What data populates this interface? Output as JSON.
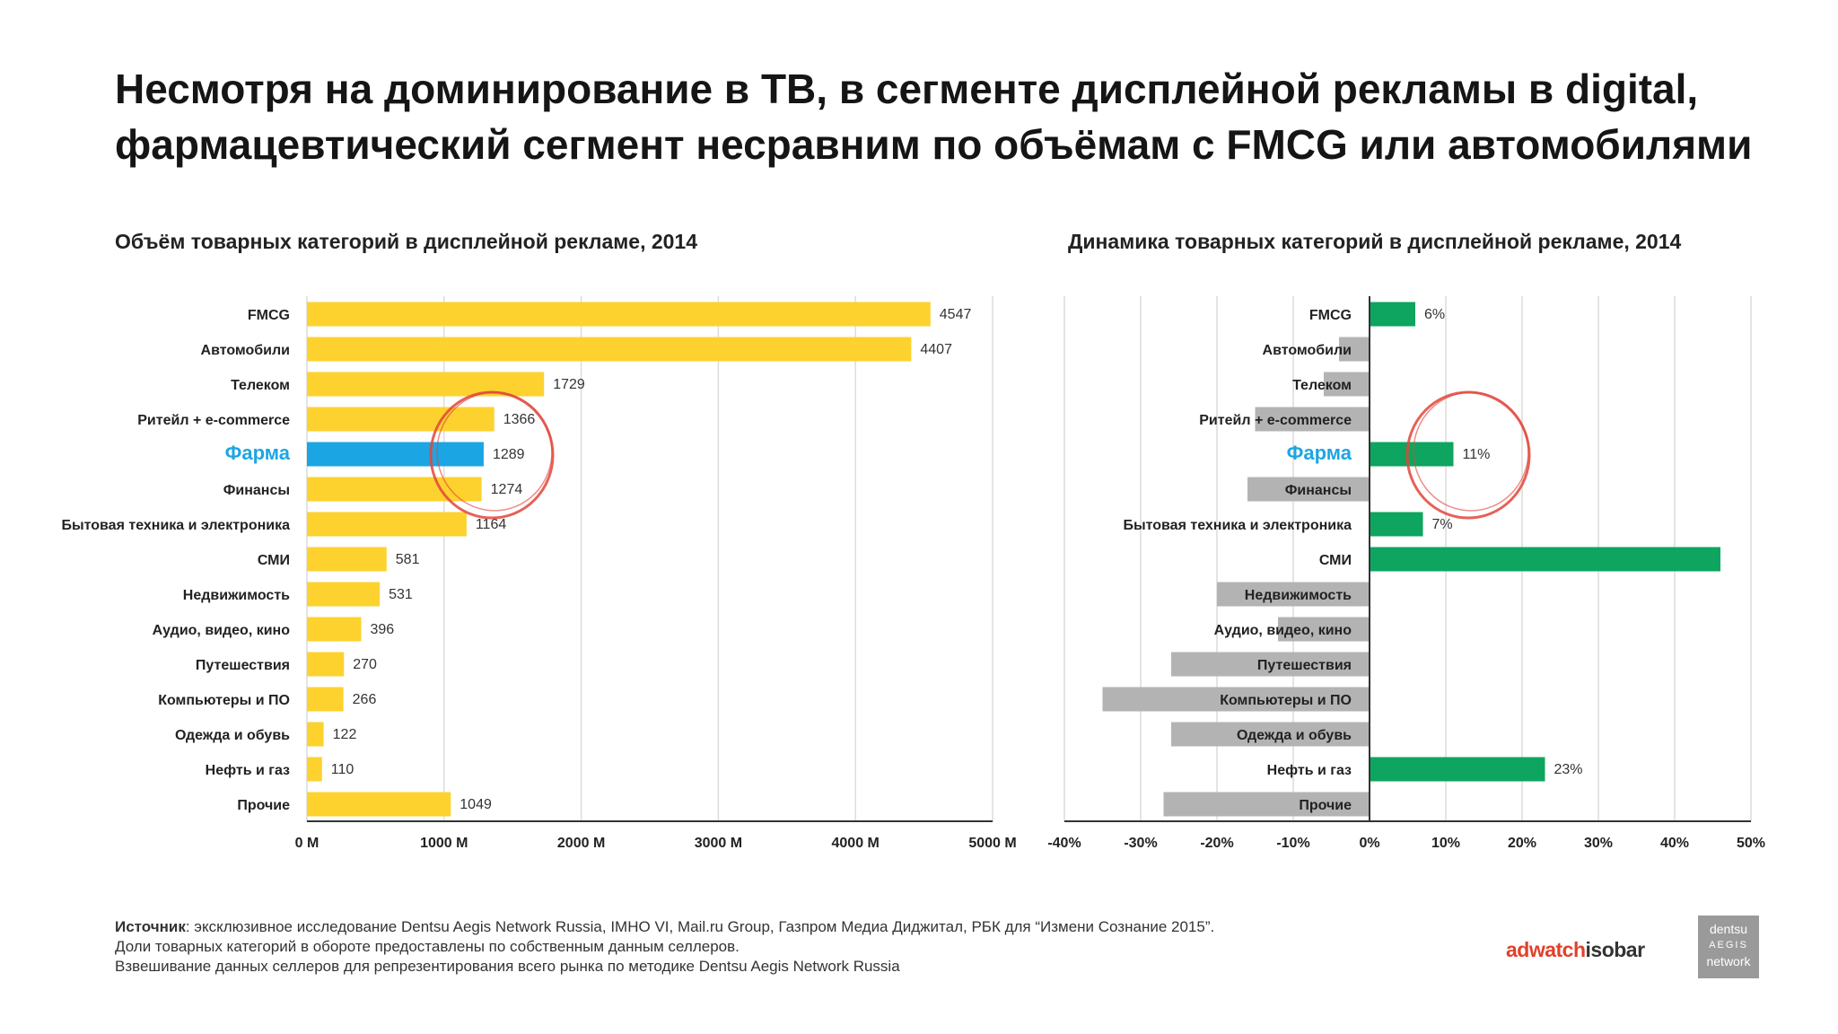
{
  "headline": "Несмотря на доминирование в ТВ, в сегменте дисплейной рекламы в digital, фармацевтический сегмент несравним по объёмам с FMCG или автомобилями",
  "colors": {
    "volume_bar": "#FDD22E",
    "highlight_bar": "#1BA6E3",
    "growth_bar": "#0DA55F",
    "decline_bar": "#B4B3B3",
    "highlight_text": "#1BA6E3",
    "circle": "#E2453A"
  },
  "chart_data": [
    {
      "type": "bar",
      "orientation": "horizontal",
      "title": "Объём товарных категорий в дисплейной рекламе, 2014",
      "categories": [
        "FMCG",
        "Автомобили",
        "Телеком",
        "Ритейл + e-commerce",
        "Фарма",
        "Финансы",
        "Бытовая техника и электроника",
        "СМИ",
        "Недвижимость",
        "Аудио, видео, кино",
        "Путешествия",
        "Компьютеры и ПО",
        "Одежда и обувь",
        "Нефть и газ",
        "Прочие"
      ],
      "values": [
        4547,
        4407,
        1729,
        1366,
        1289,
        1274,
        1164,
        581,
        531,
        396,
        270,
        266,
        122,
        110,
        1049
      ],
      "data_labels": [
        "4547",
        "4407",
        "1729",
        "1366",
        "1289",
        "1274",
        "1164",
        "581",
        "531",
        "396",
        "270",
        "266",
        "122",
        "110",
        "1049"
      ],
      "highlight": "Фарма",
      "xlim": [
        0,
        5000
      ],
      "xticks": [
        0,
        1000,
        2000,
        3000,
        4000,
        5000
      ],
      "xtick_labels": [
        "0 M",
        "1000 M",
        "2000 M",
        "3000 M",
        "4000 M",
        "5000 M"
      ],
      "grid": true
    },
    {
      "type": "bar",
      "orientation": "horizontal",
      "title": "Динамика товарных категорий в дисплейной рекламе, 2014",
      "categories": [
        "FMCG",
        "Автомобили",
        "Телеком",
        "Ритейл + e-commerce",
        "Фарма",
        "Финансы",
        "Бытовая техника и электроника",
        "СМИ",
        "Недвижимость",
        "Аудио, видео, кино",
        "Путешествия",
        "Компьютеры и ПО",
        "Одежда и обувь",
        "Нефть и газ",
        "Прочие"
      ],
      "values": [
        6,
        -4,
        -6,
        -15,
        11,
        -16,
        7,
        46,
        -20,
        -12,
        -26,
        -35,
        -26,
        23,
        -27
      ],
      "data_labels": [
        "6%",
        "",
        "",
        "",
        "11%",
        "",
        "7%",
        "",
        "",
        "",
        "",
        "",
        "",
        "23%",
        ""
      ],
      "highlight": "Фарма",
      "xlim": [
        -40,
        50
      ],
      "xticks": [
        -40,
        -30,
        -20,
        -10,
        0,
        10,
        20,
        30,
        40,
        50
      ],
      "xtick_labels": [
        "-40%",
        "-30%",
        "-20%",
        "-10%",
        "0%",
        "10%",
        "20%",
        "30%",
        "40%",
        "50%"
      ],
      "grid": true
    }
  ],
  "source": {
    "bold": "Источник",
    "line1": ": эксклюзивное исследование Dentsu Aegis Network Russia, IMHO VI, Mail.ru Group, Газпром Медиа Диджитал, РБК для “Измени Сознание 2015”.",
    "line2": "Доли товарных категорий в обороте предоставлены по собственным данным селлеров.",
    "line3": "Взвешивание данных селлеров для репрезентирования всего рынка по методике Dentsu Aegis Network Russia"
  },
  "logo": {
    "part1": "adwatch",
    "part2": "isobar"
  },
  "badge": {
    "line1": "dentsu",
    "line2": "AEGIS",
    "line3": "network"
  }
}
